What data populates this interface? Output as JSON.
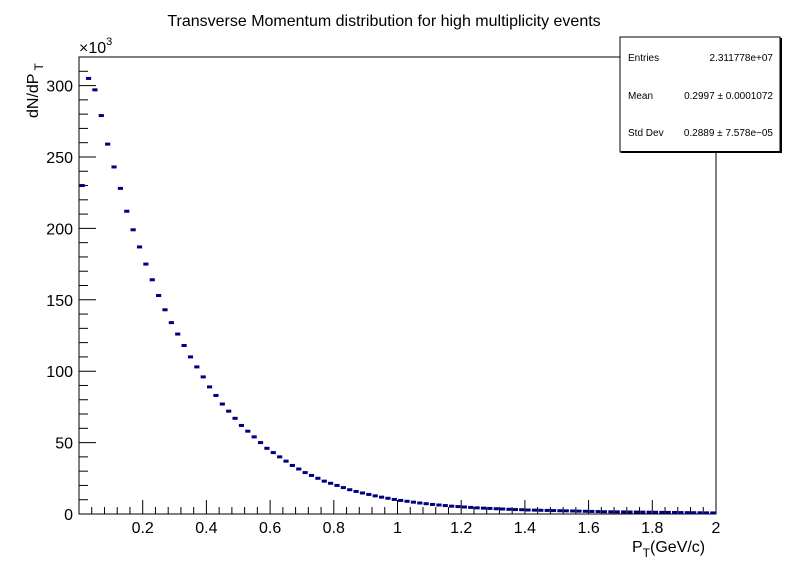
{
  "chart_data": {
    "type": "histogram",
    "title": "Transverse Momentum distribution for high multiplicity events",
    "xlabel": {
      "main": "P",
      "sub": "T",
      "rest": "(GeV/c)"
    },
    "ylabel": {
      "main": "dN/dP",
      "sub": "T"
    },
    "y_multiplier": {
      "base": "×10",
      "exp": "3"
    },
    "xlim": [
      0,
      2
    ],
    "ylim": [
      0,
      320
    ],
    "x_ticks": [
      0.2,
      0.4,
      0.6,
      0.8,
      1,
      1.2,
      1.4,
      1.6,
      1.8,
      2
    ],
    "x_tick_labels": [
      "0.2",
      "0.4",
      "0.6",
      "0.8",
      "1",
      "1.2",
      "1.4",
      "1.6",
      "1.8",
      "2"
    ],
    "y_ticks": [
      0,
      50,
      100,
      150,
      200,
      250,
      300
    ],
    "y_tick_labels": [
      "0",
      "50",
      "100",
      "150",
      "200",
      "250",
      "300"
    ],
    "bin_width": 0.02,
    "bin_centers": [
      0.01,
      0.03,
      0.05,
      0.07,
      0.09,
      0.11,
      0.13,
      0.15,
      0.17,
      0.19,
      0.21,
      0.23,
      0.25,
      0.27,
      0.29,
      0.31,
      0.33,
      0.35,
      0.37,
      0.39,
      0.41,
      0.43,
      0.45,
      0.47,
      0.49,
      0.51,
      0.53,
      0.55,
      0.57,
      0.59,
      0.61,
      0.63,
      0.65,
      0.67,
      0.69,
      0.71,
      0.73,
      0.75,
      0.77,
      0.79,
      0.81,
      0.83,
      0.85,
      0.87,
      0.89,
      0.91,
      0.93,
      0.95,
      0.97,
      0.99,
      1.01,
      1.03,
      1.05,
      1.07,
      1.09,
      1.11,
      1.13,
      1.15,
      1.17,
      1.19,
      1.21,
      1.23,
      1.25,
      1.27,
      1.29,
      1.31,
      1.33,
      1.35,
      1.37,
      1.39,
      1.41,
      1.43,
      1.45,
      1.47,
      1.49,
      1.51,
      1.53,
      1.55,
      1.57,
      1.59,
      1.61,
      1.63,
      1.65,
      1.67,
      1.69,
      1.71,
      1.73,
      1.75,
      1.77,
      1.79,
      1.81,
      1.83,
      1.85,
      1.87,
      1.89,
      1.91,
      1.93,
      1.95,
      1.97,
      1.99
    ],
    "values": [
      230,
      305,
      297,
      279,
      259,
      243,
      228,
      212,
      199,
      187,
      175,
      164,
      153,
      143,
      134,
      126,
      118,
      110,
      103,
      96,
      89,
      83,
      77,
      72,
      67,
      62,
      58,
      54,
      50,
      46,
      43,
      40,
      37,
      34,
      31.5,
      29,
      27,
      25,
      23,
      21.5,
      20,
      18.5,
      17,
      15.8,
      14.7,
      13.7,
      12.7,
      11.8,
      11,
      10.2,
      9.5,
      8.9,
      8.3,
      7.7,
      7.2,
      6.7,
      6.3,
      5.9,
      5.5,
      5.2,
      4.9,
      4.6,
      4.3,
      4.1,
      3.9,
      3.7,
      3.5,
      3.3,
      3.1,
      3,
      2.8,
      2.7,
      2.6,
      2.5,
      2.4,
      2.3,
      2.2,
      2.1,
      2,
      1.9,
      1.8,
      1.7,
      1.6,
      1.55,
      1.5,
      1.45,
      1.4,
      1.35,
      1.3,
      1.25,
      1.2,
      1.15,
      1.1,
      1.05,
      1,
      0.95,
      0.9,
      0.85,
      0.8,
      0.75
    ],
    "color": "#000080",
    "stats": [
      {
        "label": "Entries",
        "value": "2.311778e+07"
      },
      {
        "label": "Mean",
        "value": "0.2997 ± 0.0001072"
      },
      {
        "label": "Std Dev",
        "value": "0.2889 ± 7.578e−05"
      }
    ]
  }
}
